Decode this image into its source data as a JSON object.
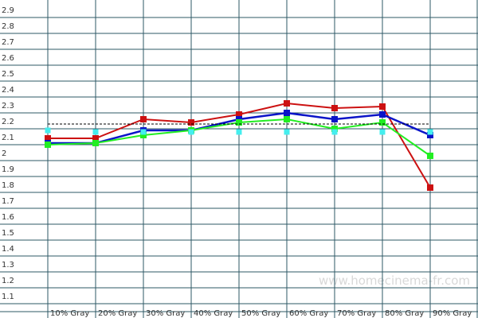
{
  "chart_data": {
    "type": "line",
    "categories": [
      "10% Gray",
      "20% Gray",
      "30% Gray",
      "40% Gray",
      "50% Gray",
      "60% Gray",
      "70% Gray",
      "80% Gray",
      "90% Gray"
    ],
    "series": [
      {
        "name": "Red",
        "color": "#cc1111",
        "values": [
          2.09,
          2.09,
          2.21,
          2.19,
          2.24,
          2.31,
          2.28,
          2.29,
          1.78
        ]
      },
      {
        "name": "Blue",
        "color": "#0a14c8",
        "values": [
          2.06,
          2.06,
          2.14,
          2.14,
          2.21,
          2.25,
          2.21,
          2.24,
          2.11
        ]
      },
      {
        "name": "Green",
        "color": "#22ee22",
        "values": [
          2.05,
          2.06,
          2.11,
          2.14,
          2.19,
          2.21,
          2.15,
          2.19,
          1.98
        ]
      },
      {
        "name": "Cyan",
        "color": "#44eeee",
        "values": [
          2.14,
          2.13,
          2.13,
          2.13,
          2.13,
          2.13,
          2.13,
          2.13,
          2.13
        ]
      },
      {
        "name": "Target",
        "color": "#000000",
        "values": [
          2.18,
          2.18,
          2.18,
          2.18,
          2.18,
          2.18,
          2.18,
          2.18,
          2.18
        ]
      }
    ],
    "ylim": [
      1.0,
      3.0
    ],
    "yticks": [
      1.1,
      1.2,
      1.3,
      1.4,
      1.5,
      1.6,
      1.7,
      1.8,
      1.9,
      2,
      2.1,
      2.2,
      2.3,
      2.4,
      2.5,
      2.6,
      2.7,
      2.8,
      2.9
    ],
    "grid": true,
    "watermark": "www.homecinema-fr.com"
  }
}
